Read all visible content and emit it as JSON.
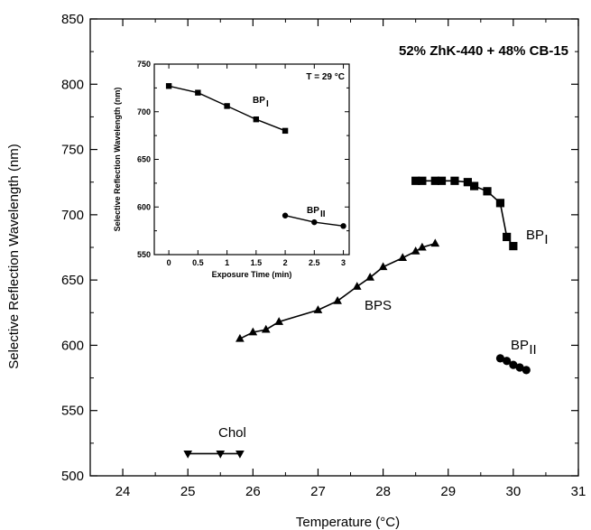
{
  "chart_data": [
    {
      "type": "line",
      "title": "52% ZhK-440 + 48% CB-15",
      "xlabel": "Temperature  (°C)",
      "ylabel": "Selective Reflection Wavelength  (nm)",
      "xlim": [
        23.5,
        31
      ],
      "ylim": [
        500,
        850
      ],
      "xticks": [
        "24",
        "25",
        "26",
        "27",
        "28",
        "29",
        "30",
        "31"
      ],
      "yticks": [
        "500",
        "550",
        "600",
        "650",
        "700",
        "750",
        "800",
        "850"
      ],
      "grid": false,
      "series": [
        {
          "name": "Chol",
          "marker": "triangle-down",
          "x": [
            25.0,
            25.5,
            25.8
          ],
          "y": [
            517,
            517,
            517
          ]
        },
        {
          "name": "BPS",
          "marker": "triangle-up",
          "x": [
            25.8,
            26.0,
            26.2,
            26.4,
            27.0,
            27.3,
            27.6,
            27.8,
            28.0,
            28.3,
            28.5,
            28.6,
            28.8
          ],
          "y": [
            605,
            610,
            612,
            618,
            627,
            634,
            645,
            652,
            660,
            667,
            672,
            675,
            678
          ]
        },
        {
          "name": "BP",
          "subscript": "I",
          "marker": "square",
          "x": [
            28.5,
            28.6,
            28.8,
            28.9,
            29.1,
            29.3,
            29.4,
            29.6,
            29.8,
            29.9,
            30.0
          ],
          "y": [
            726,
            726,
            726,
            726,
            726,
            725,
            722,
            718,
            709,
            683,
            676
          ]
        },
        {
          "name": "BP",
          "subscript": "II",
          "marker": "circle",
          "x": [
            29.8,
            29.9,
            30.0,
            30.1,
            30.2
          ],
          "y": [
            590,
            588,
            585,
            583,
            581
          ]
        }
      ]
    },
    {
      "type": "line",
      "title": "",
      "annotation": "T = 29 °C",
      "xlabel": "Exposure Time  (min)",
      "ylabel": "Selective Reflection Wavelength  (nm)",
      "xlim": [
        -0.25,
        3.1
      ],
      "ylim": [
        550,
        750
      ],
      "xticks": [
        "0",
        "0.5",
        "1",
        "1.5",
        "2",
        "2.5",
        "3"
      ],
      "yticks": [
        "550",
        "600",
        "650",
        "700",
        "750"
      ],
      "grid": false,
      "series": [
        {
          "name": "BP",
          "subscript": "I",
          "marker": "square",
          "x": [
            0,
            0.5,
            1.0,
            1.5,
            2.0
          ],
          "y": [
            727,
            720,
            706,
            692,
            680
          ]
        },
        {
          "name": "BP",
          "subscript": "II",
          "marker": "circle",
          "x": [
            2.0,
            2.5,
            3.0
          ],
          "y": [
            591,
            584,
            580
          ]
        }
      ]
    }
  ]
}
